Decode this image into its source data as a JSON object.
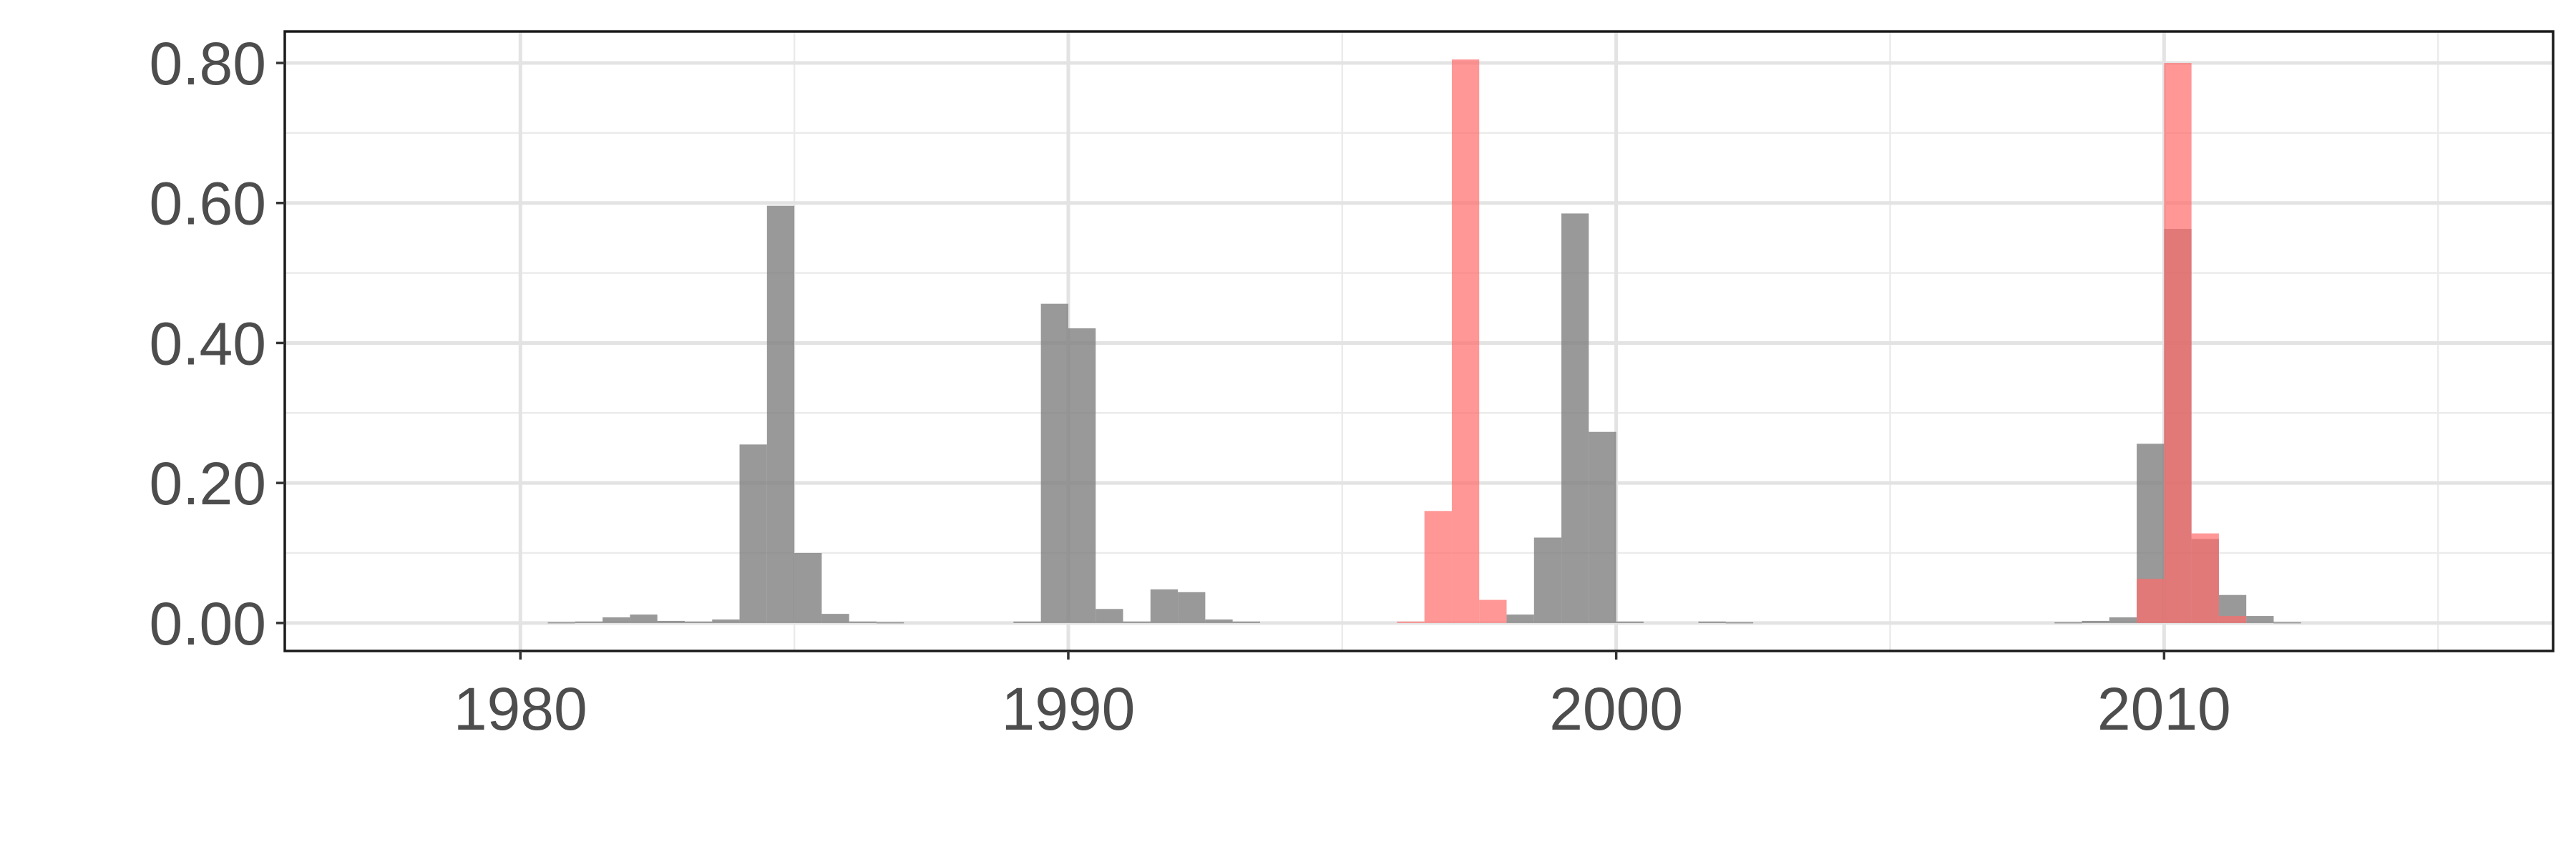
{
  "chart_data": {
    "type": "bar",
    "title": "",
    "xlabel": "",
    "ylabel": "",
    "xlim": [
      1975.7,
      2017.1
    ],
    "ylim": [
      -0.04,
      0.845
    ],
    "x_ticks": [
      1980,
      1990,
      2000,
      2010
    ],
    "x_tick_labels": [
      "1980",
      "1990",
      "2000",
      "2010"
    ],
    "x_minor_ticks": [
      1985,
      1995,
      2005,
      2015
    ],
    "y_ticks": [
      0,
      0.2,
      0.4,
      0.6,
      0.8
    ],
    "y_tick_labels": [
      "0.00",
      "0.20",
      "0.40",
      "0.60",
      "0.80"
    ],
    "y_minor_ticks": [
      0.1,
      0.3,
      0.5,
      0.7
    ],
    "grid": true,
    "legend": "none",
    "bin_width": 0.5,
    "series": [
      {
        "color": "#7f7f7f",
        "opacity": 0.8,
        "bars": [
          [
            1980.75,
            0.001
          ],
          [
            1981.25,
            0.002
          ],
          [
            1981.75,
            0.008
          ],
          [
            1982.25,
            0.012
          ],
          [
            1982.75,
            0.003
          ],
          [
            1983.25,
            0.002
          ],
          [
            1983.75,
            0.005
          ],
          [
            1984.25,
            0.255
          ],
          [
            1984.75,
            0.596
          ],
          [
            1985.25,
            0.1
          ],
          [
            1985.75,
            0.013
          ],
          [
            1986.25,
            0.002
          ],
          [
            1986.75,
            0.001
          ],
          [
            1989.25,
            0.002
          ],
          [
            1989.75,
            0.456
          ],
          [
            1990.25,
            0.421
          ],
          [
            1990.75,
            0.02
          ],
          [
            1991.25,
            0.002
          ],
          [
            1991.75,
            0.048
          ],
          [
            1992.25,
            0.044
          ],
          [
            1992.75,
            0.005
          ],
          [
            1993.25,
            0.002
          ],
          [
            1998.25,
            0.012
          ],
          [
            1998.75,
            0.122
          ],
          [
            1999.25,
            0.585
          ],
          [
            1999.75,
            0.273
          ],
          [
            2000.25,
            0.002
          ],
          [
            2001.75,
            0.002
          ],
          [
            2002.25,
            0.001
          ],
          [
            2008.25,
            0.001
          ],
          [
            2008.75,
            0.003
          ],
          [
            2009.25,
            0.008
          ],
          [
            2009.75,
            0.256
          ],
          [
            2010.25,
            0.563
          ],
          [
            2010.75,
            0.12
          ],
          [
            2011.25,
            0.04
          ],
          [
            2011.75,
            0.01
          ],
          [
            2012.25,
            0.001
          ]
        ]
      },
      {
        "color": "#ff6b6b",
        "opacity": 0.7,
        "bars": [
          [
            1996.25,
            0.002
          ],
          [
            1996.75,
            0.16
          ],
          [
            1997.25,
            0.805
          ],
          [
            1997.75,
            0.033
          ],
          [
            2009.75,
            0.063
          ],
          [
            2010.25,
            0.8
          ],
          [
            2010.75,
            0.128
          ],
          [
            2011.25,
            0.01
          ]
        ]
      }
    ]
  }
}
